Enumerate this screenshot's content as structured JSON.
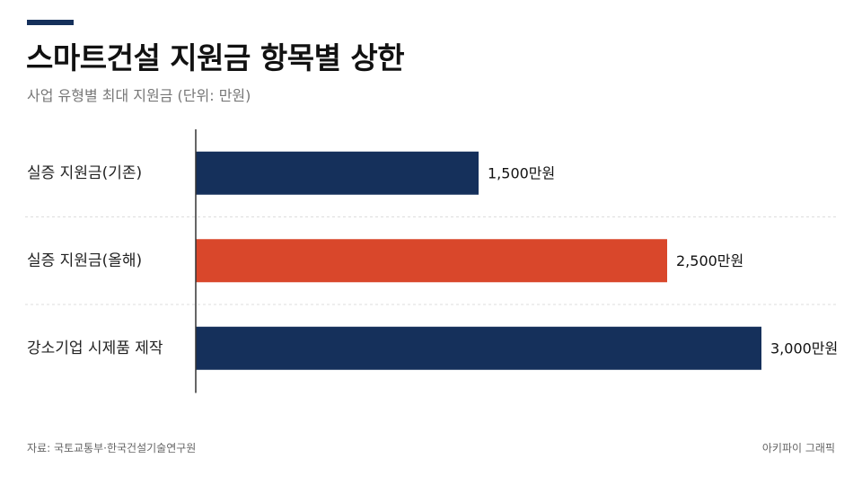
{
  "header": {
    "title": "스마트건설 지원금 항목별 상한",
    "subtitle": "사업 유형별 최대 지원금 (단위: 만원)"
  },
  "colors": {
    "navy": "#15305B",
    "orange": "#D9472B",
    "axis": "#333333",
    "grid": "#DDDDDD"
  },
  "chart_data": {
    "type": "bar",
    "orientation": "horizontal",
    "categories": [
      "실증 지원금(기존)",
      "실증 지원금(올해)",
      "강소기업 시제품 제작"
    ],
    "values": [
      1500,
      2500,
      3000
    ],
    "value_labels": [
      "1,500만원",
      "2,500만원",
      "3,000만원"
    ],
    "bar_colors": [
      "#15305B",
      "#D9472B",
      "#15305B"
    ],
    "xlim": [
      0,
      3400
    ],
    "grid": "dashed row separators",
    "legend": "none"
  },
  "footer": {
    "source": "자료: 국토교통부·한국건설기술연구원",
    "credit": "아키파이 그래픽"
  }
}
